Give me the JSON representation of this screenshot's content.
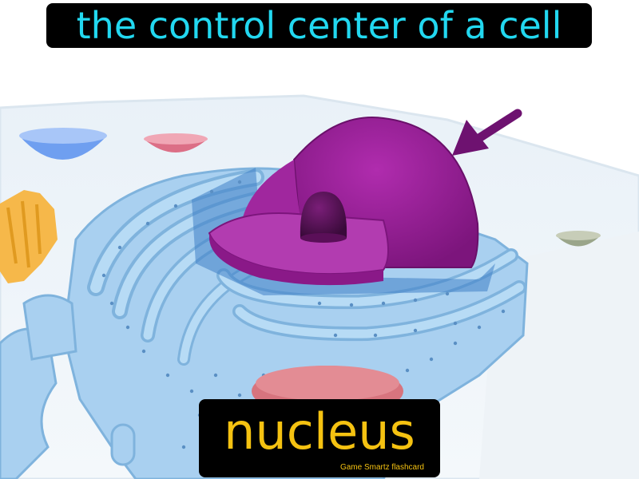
{
  "card": {
    "definition": "the control center of a cell",
    "term": "nucleus",
    "brand": "Game Smartz flashcard"
  },
  "illustration": {
    "subject": "animal-cell-cutaway",
    "highlight": "nucleus",
    "colors": {
      "nucleus": "#8e1a8e",
      "nucleolus": "#4e0f4e",
      "arrow": "#6e1270",
      "endoplasmic_reticulum": "#8ec4ec",
      "definition_text": "#22d8f0",
      "term_text": "#f5c211"
    }
  }
}
